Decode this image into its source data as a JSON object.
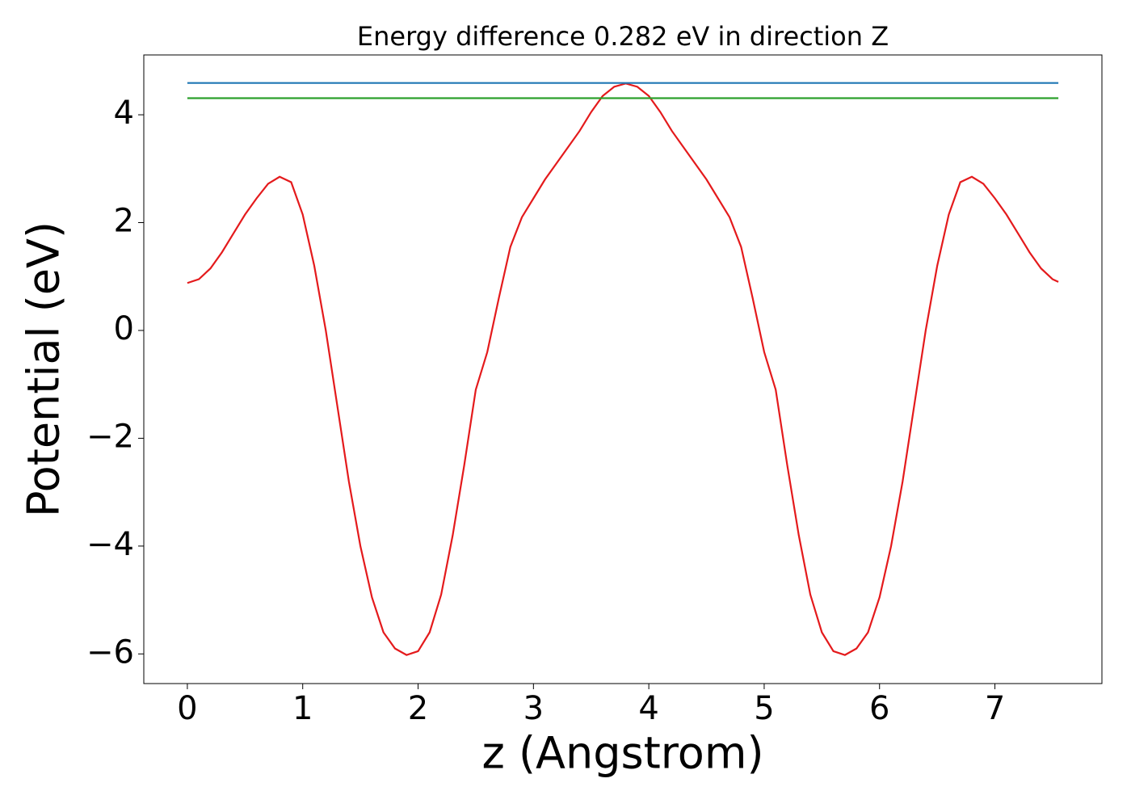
{
  "chart_data": {
    "type": "line",
    "title": "Energy difference 0.282 eV in direction Z",
    "xlabel": "z (Angstrom)",
    "ylabel": "Potential (eV)",
    "xlim": [
      -0.3775,
      7.9275
    ],
    "ylim": [
      -6.55,
      5.11
    ],
    "xticks": [
      0,
      1,
      2,
      3,
      4,
      5,
      6,
      7
    ],
    "yticks": [
      {
        "value": -6,
        "label": "−6"
      },
      {
        "value": -4,
        "label": "−4"
      },
      {
        "value": -2,
        "label": "−2"
      },
      0,
      2,
      4
    ],
    "grid": false,
    "series": [
      {
        "color": "#e41a1c",
        "x": [
          0,
          0.1,
          0.2,
          0.3,
          0.4,
          0.5,
          0.6,
          0.7,
          0.8,
          0.9,
          1.0,
          1.1,
          1.2,
          1.3,
          1.4,
          1.5,
          1.6,
          1.7,
          1.8,
          1.9,
          2.0,
          2.1,
          2.2,
          2.3,
          2.4,
          2.5,
          2.6,
          2.7,
          2.8,
          2.9,
          3.0,
          3.1,
          3.2,
          3.3,
          3.4,
          3.5,
          3.6,
          3.7,
          3.8,
          3.9,
          4.0,
          4.1,
          4.2,
          4.3,
          4.4,
          4.5,
          4.6,
          4.7,
          4.8,
          4.9,
          5.0,
          5.1,
          5.2,
          5.3,
          5.4,
          5.5,
          5.6,
          5.7,
          5.8,
          5.9,
          6.0,
          6.1,
          6.2,
          6.3,
          6.4,
          6.5,
          6.6,
          6.7,
          6.8,
          6.9,
          7.0,
          7.1,
          7.2,
          7.3,
          7.4,
          7.5,
          7.55
        ],
        "values": [
          0.88,
          0.95,
          1.15,
          1.45,
          1.8,
          2.15,
          2.45,
          2.72,
          2.85,
          2.75,
          2.15,
          1.2,
          0.0,
          -1.4,
          -2.8,
          -4.0,
          -4.95,
          -5.6,
          -5.9,
          -6.02,
          -5.95,
          -5.6,
          -4.9,
          -3.8,
          -2.5,
          -1.1,
          -0.4,
          0.6,
          1.55,
          2.1,
          2.45,
          2.8,
          3.1,
          3.4,
          3.7,
          4.05,
          4.35,
          4.52,
          4.58,
          4.52,
          4.35,
          4.05,
          3.7,
          3.4,
          3.1,
          2.8,
          2.45,
          2.1,
          1.55,
          0.6,
          -0.4,
          -1.1,
          -2.5,
          -3.8,
          -4.9,
          -5.6,
          -5.95,
          -6.02,
          -5.9,
          -5.6,
          -4.95,
          -4.0,
          -2.8,
          -1.4,
          0.0,
          1.2,
          2.15,
          2.75,
          2.85,
          2.72,
          2.45,
          2.15,
          1.8,
          1.45,
          1.15,
          0.95,
          0.9
        ]
      },
      {
        "color": "#1f77b4",
        "x": [
          0,
          7.55
        ],
        "values": [
          4.59,
          4.59
        ]
      },
      {
        "color": "#2ca02c",
        "x": [
          0,
          7.55
        ],
        "values": [
          4.308,
          4.308
        ]
      }
    ]
  }
}
